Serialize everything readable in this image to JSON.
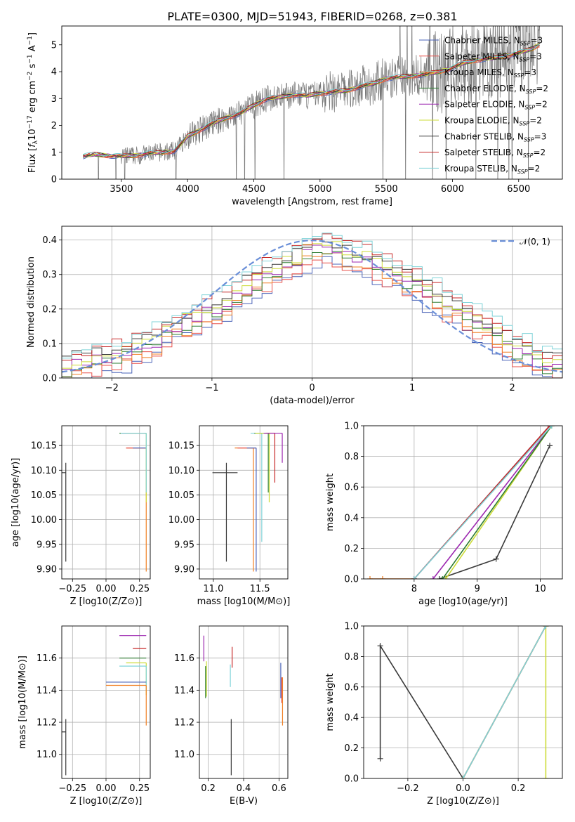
{
  "figure_title": "PLATE=0300, MJD=51943, FIBERID=0268, z=0.381",
  "colors": {
    "Chabrier MILES": "#4a63b8",
    "Salpeter MILES": "#e8504a",
    "Kroupa MILES": "#f07f23",
    "Chabrier ELODIE": "#2e7d32",
    "Salpeter ELODIE": "#9c27b0",
    "Kroupa ELODIE": "#cddc39",
    "Chabrier STELIB": "#3a3a3a",
    "Salpeter STELIB": "#c62828",
    "Kroupa STELIB": "#7fd3d8",
    "data": "#777777",
    "normal": "#6a8fd8"
  },
  "legend_entries": [
    {
      "name": "Chabrier MILES",
      "nssp": "3"
    },
    {
      "name": "Salpeter MILES",
      "nssp": "3"
    },
    {
      "name": "Kroupa MILES",
      "nssp": "3"
    },
    {
      "name": "Chabrier ELODIE",
      "nssp": "2"
    },
    {
      "name": "Salpeter ELODIE",
      "nssp": "2"
    },
    {
      "name": "Kroupa ELODIE",
      "nssp": "2"
    },
    {
      "name": "Chabrier STELIB",
      "nssp": "3"
    },
    {
      "name": "Salpeter STELIB",
      "nssp": "2"
    },
    {
      "name": "Kroupa STELIB",
      "nssp": "2"
    }
  ],
  "chart_data": [
    {
      "id": "spectrum",
      "type": "line",
      "title": "PLATE=0300, MJD=51943, FIBERID=0268, z=0.381",
      "xlabel": "wavelength [Angstrom, rest frame]",
      "ylabel": "Flux [f_λ10^-17 erg cm^-2 s^-1 A^-1]",
      "xlim": [
        3050,
        6830
      ],
      "ylim": [
        0,
        5.7
      ],
      "xticks": [
        3500,
        4000,
        4500,
        5000,
        5500,
        6000,
        6500
      ],
      "yticks": [
        0,
        1,
        2,
        3,
        4,
        5
      ],
      "grid": false,
      "legend": "top-right",
      "continuum_x": [
        3210,
        3300,
        3400,
        3500,
        3600,
        3700,
        3800,
        3900,
        3950,
        4000,
        4100,
        4200,
        4300,
        4400,
        4500,
        4600,
        4700,
        4800,
        4900,
        5000,
        5100,
        5200,
        5300,
        5400,
        5500,
        5600,
        5700,
        5800,
        5900,
        6000,
        6100,
        6200,
        6300,
        6400,
        6500,
        6600,
        6650
      ],
      "continuum_y": [
        0.85,
        0.92,
        0.88,
        0.85,
        0.88,
        0.95,
        1.0,
        1.05,
        1.3,
        1.6,
        1.85,
        2.1,
        2.3,
        2.45,
        2.75,
        3.0,
        3.05,
        3.15,
        3.1,
        3.2,
        3.25,
        3.3,
        3.45,
        3.55,
        3.75,
        3.8,
        3.85,
        3.9,
        4.0,
        4.15,
        4.35,
        4.45,
        4.5,
        4.6,
        4.7,
        4.85,
        5.0
      ]
    },
    {
      "id": "residuals",
      "type": "line",
      "xlabel": "(data-model)/error",
      "ylabel": "Normed distribution",
      "xlim": [
        -2.5,
        2.5
      ],
      "ylim": [
        0,
        0.44
      ],
      "xticks": [
        -2,
        -1,
        0,
        1,
        2
      ],
      "yticks": [
        0.0,
        0.1,
        0.2,
        0.3,
        0.4
      ],
      "grid": true,
      "legend": "top-right",
      "legend_label": "𝒩(0, 1)",
      "hist_bins_x": [
        -2.5,
        -2.4,
        -2.3,
        -2.2,
        -2.1,
        -2.0,
        -1.9,
        -1.8,
        -1.7,
        -1.6,
        -1.5,
        -1.4,
        -1.3,
        -1.2,
        -1.1,
        -1.0,
        -0.9,
        -0.8,
        -0.7,
        -0.6,
        -0.5,
        -0.4,
        -0.3,
        -0.2,
        -0.1,
        0.0,
        0.1,
        0.2,
        0.3,
        0.4,
        0.5,
        0.6,
        0.7,
        0.8,
        0.9,
        1.0,
        1.1,
        1.2,
        1.3,
        1.4,
        1.5,
        1.6,
        1.7,
        1.8,
        1.9,
        2.0,
        2.1,
        2.2,
        2.3,
        2.4
      ],
      "hist_center": [
        0.03,
        0.04,
        0.045,
        0.05,
        0.06,
        0.065,
        0.075,
        0.085,
        0.095,
        0.105,
        0.13,
        0.15,
        0.16,
        0.175,
        0.19,
        0.2,
        0.22,
        0.24,
        0.26,
        0.28,
        0.3,
        0.31,
        0.33,
        0.34,
        0.36,
        0.38,
        0.38,
        0.37,
        0.36,
        0.35,
        0.34,
        0.33,
        0.31,
        0.3,
        0.28,
        0.27,
        0.25,
        0.23,
        0.21,
        0.2,
        0.18,
        0.16,
        0.14,
        0.12,
        0.1,
        0.08,
        0.07,
        0.05,
        0.04,
        0.035
      ]
    },
    {
      "id": "age_vs_Z",
      "type": "scatter",
      "xlabel": "Z [log10(Z/Z⊙)]",
      "ylabel": "age [log10(age/yr)]",
      "xlim": [
        -0.33,
        0.33
      ],
      "ylim": [
        9.88,
        10.19
      ],
      "xticks": [
        -0.25,
        0.0,
        0.25
      ],
      "yticks": [
        9.9,
        9.95,
        10.0,
        10.05,
        10.1,
        10.15
      ],
      "grid": true,
      "markers": [
        {
          "model": "Chabrier STELIB",
          "x": -0.3,
          "y": 10.095,
          "xerr": [
            0.4,
            0
          ],
          "yerr": [
            0.18,
            0.02
          ]
        },
        {
          "model": "Kroupa MILES",
          "x": 0.3,
          "y": 10.145,
          "xerr": [
            0.15,
            0
          ],
          "yerr": [
            0.25,
            0.0
          ]
        },
        {
          "model": "Salpeter MILES",
          "x": 0.3,
          "y": 10.145,
          "xerr": [
            0.15,
            0
          ],
          "yerr": [
            0.0,
            0.0
          ]
        },
        {
          "model": "Chabrier MILES",
          "x": 0.3,
          "y": 10.145,
          "xerr": [
            0.1,
            0
          ],
          "yerr": [
            0.0,
            0.0
          ]
        },
        {
          "model": "Chabrier ELODIE",
          "x": 0.3,
          "y": 10.175,
          "xerr": [
            0.2,
            0
          ],
          "yerr": [
            0.0,
            0.0
          ]
        },
        {
          "model": "Salpeter ELODIE",
          "x": 0.3,
          "y": 10.175,
          "xerr": [
            0.18,
            0
          ],
          "yerr": [
            0.0,
            0.0
          ]
        },
        {
          "model": "Kroupa ELODIE",
          "x": 0.3,
          "y": 10.175,
          "xerr": [
            0.15,
            0
          ],
          "yerr": [
            0.14,
            0.0
          ]
        },
        {
          "model": "Kroupa STELIB",
          "x": 0.3,
          "y": 10.175,
          "xerr": [
            0.19,
            0
          ],
          "yerr": [
            0.12,
            0.0
          ]
        }
      ]
    },
    {
      "id": "age_vs_mass",
      "type": "scatter",
      "xlabel": "mass [log10(M/M⊙)]",
      "xlim": [
        10.85,
        11.8
      ],
      "ylim": [
        9.88,
        10.19
      ],
      "xticks": [
        11.0,
        11.5
      ],
      "yticks": [
        9.9,
        9.95,
        10.0,
        10.05,
        10.1,
        10.15
      ],
      "grid": true,
      "markers": [
        {
          "model": "Chabrier STELIB",
          "x": 11.14,
          "y": 10.095,
          "xerr": [
            0.15,
            0.12
          ],
          "yerr": [
            0.18,
            0.02
          ]
        },
        {
          "model": "Kroupa MILES",
          "x": 11.43,
          "y": 10.145,
          "xerr": [
            0.2,
            0
          ],
          "yerr": [
            0.25,
            0.0
          ]
        },
        {
          "model": "Salpeter MILES",
          "x": 11.46,
          "y": 10.145,
          "xerr": [
            0.2,
            0
          ],
          "yerr": [
            0.0,
            0.0
          ]
        },
        {
          "model": "Chabrier MILES",
          "x": 11.46,
          "y": 10.145,
          "xerr": [
            0.1,
            0.0
          ],
          "yerr": [
            0.25,
            0.0
          ]
        },
        {
          "model": "Kroupa STELIB",
          "x": 11.52,
          "y": 10.175,
          "xerr": [
            0.12,
            0
          ],
          "yerr": [
            0.22,
            0.0
          ]
        },
        {
          "model": "Chabrier ELODIE",
          "x": 11.59,
          "y": 10.175,
          "xerr": [
            0.15,
            0
          ],
          "yerr": [
            0.12,
            0.0
          ]
        },
        {
          "model": "Kroupa ELODIE",
          "x": 11.6,
          "y": 10.175,
          "xerr": [
            0.15,
            0
          ],
          "yerr": [
            0.14,
            0.0
          ]
        },
        {
          "model": "Salpeter STELIB",
          "x": 11.66,
          "y": 10.175,
          "xerr": [
            0.1,
            0
          ],
          "yerr": [
            0.1,
            0.0
          ]
        },
        {
          "model": "Salpeter ELODIE",
          "x": 11.74,
          "y": 10.175,
          "xerr": [
            0.2,
            0
          ],
          "yerr": [
            0.06,
            0.0
          ]
        }
      ]
    },
    {
      "id": "weight_vs_age",
      "type": "line",
      "xlabel": "age [log10(age/yr)]",
      "ylabel": "mass weight",
      "xlim": [
        7.2,
        10.35
      ],
      "ylim": [
        0,
        1.0
      ],
      "xticks": [
        8,
        9,
        10
      ],
      "yticks": [
        0.0,
        0.2,
        0.4,
        0.6,
        0.8,
        1.0
      ],
      "grid": true,
      "series": [
        {
          "model": "Chabrier STELIB",
          "x": [
            8.4,
            9.3,
            10.15
          ],
          "y": [
            0.0,
            0.13,
            0.87
          ]
        },
        {
          "model": "Salpeter ELODIE",
          "x": [
            8.3,
            10.18
          ],
          "y": [
            0.0,
            1.0
          ]
        },
        {
          "model": "Kroupa ELODIE",
          "x": [
            8.5,
            10.18
          ],
          "y": [
            0.0,
            1.0
          ]
        },
        {
          "model": "Chabrier ELODIE",
          "x": [
            8.45,
            10.18
          ],
          "y": [
            0.0,
            1.0
          ]
        },
        {
          "model": "Kroupa MILES",
          "x": [
            7.3,
            7.5,
            8.0,
            10.15
          ],
          "y": [
            0.0,
            0.0,
            0.0,
            1.0
          ]
        },
        {
          "model": "Salpeter MILES",
          "x": [
            8.0,
            10.15
          ],
          "y": [
            0.0,
            1.0
          ]
        },
        {
          "model": "Chabrier MILES",
          "x": [
            8.0,
            10.15
          ],
          "y": [
            0.0,
            1.0
          ]
        },
        {
          "model": "Salpeter STELIB",
          "x": [
            8.0,
            10.15
          ],
          "y": [
            0.0,
            1.0
          ]
        },
        {
          "model": "Kroupa STELIB",
          "x": [
            8.0,
            10.18
          ],
          "y": [
            0.0,
            1.0
          ]
        }
      ]
    },
    {
      "id": "mass_vs_Z",
      "type": "scatter",
      "xlabel": "Z [log10(Z/Z⊙)]",
      "ylabel": "mass [log10(M/M⊙)]",
      "xlim": [
        -0.33,
        0.33
      ],
      "ylim": [
        10.85,
        11.8
      ],
      "xticks": [
        -0.25,
        0.0,
        0.25
      ],
      "yticks": [
        11.0,
        11.2,
        11.4,
        11.6
      ],
      "grid": true,
      "markers": [
        {
          "model": "Chabrier STELIB",
          "x": -0.3,
          "y": 11.14,
          "xerr": [
            0.4,
            0
          ],
          "yerr": [
            0.27,
            0.08
          ]
        },
        {
          "model": "Salpeter ELODIE",
          "x": 0.3,
          "y": 11.74,
          "xerr": [
            0.2,
            0
          ],
          "yerr": [
            0,
            0
          ]
        },
        {
          "model": "Salpeter STELIB",
          "x": 0.3,
          "y": 11.66,
          "xerr": [
            0.1,
            0
          ],
          "yerr": [
            0,
            0
          ]
        },
        {
          "model": "Chabrier ELODIE",
          "x": 0.3,
          "y": 11.6,
          "xerr": [
            0.2,
            0
          ],
          "yerr": [
            0,
            0
          ]
        },
        {
          "model": "Kroupa ELODIE",
          "x": 0.3,
          "y": 11.57,
          "xerr": [
            0.15,
            0
          ],
          "yerr": [
            0.2,
            0
          ]
        },
        {
          "model": "Kroupa STELIB",
          "x": 0.3,
          "y": 11.55,
          "xerr": [
            0.2,
            0
          ],
          "yerr": [
            0.15,
            0
          ]
        },
        {
          "model": "Chabrier MILES",
          "x": 0.3,
          "y": 11.45,
          "xerr": [
            0.3,
            0
          ],
          "yerr": [
            0,
            0
          ]
        },
        {
          "model": "Kroupa MILES",
          "x": 0.3,
          "y": 11.43,
          "xerr": [
            0.3,
            0
          ],
          "yerr": [
            0.25,
            0
          ]
        }
      ]
    },
    {
      "id": "mass_vs_ebv",
      "type": "scatter",
      "xlabel": "E(B-V)",
      "xlim": [
        0.15,
        0.65
      ],
      "ylim": [
        10.85,
        11.8
      ],
      "xticks": [
        0.2,
        0.4,
        0.6
      ],
      "yticks": [
        11.0,
        11.2,
        11.4,
        11.6
      ],
      "grid": true,
      "markers": [
        {
          "model": "Salpeter ELODIE",
          "x": 0.175,
          "y": 11.62,
          "yerr": [
            0.04,
            0.12
          ]
        },
        {
          "model": "Chabrier ELODIE",
          "x": 0.185,
          "y": 11.45,
          "yerr": [
            0.1,
            0.1
          ]
        },
        {
          "model": "Kroupa ELODIE",
          "x": 0.19,
          "y": 11.46,
          "yerr": [
            0.1,
            0.12
          ]
        },
        {
          "model": "Salpeter STELIB",
          "x": 0.335,
          "y": 11.6,
          "yerr": [
            0.06,
            0.07
          ]
        },
        {
          "model": "Kroupa STELIB",
          "x": 0.325,
          "y": 11.48,
          "yerr": [
            0.06,
            0.08
          ]
        },
        {
          "model": "Chabrier STELIB",
          "x": 0.33,
          "y": 11.14,
          "yerr": [
            0.27,
            0.08
          ]
        },
        {
          "model": "Kroupa MILES",
          "x": 0.62,
          "y": 11.33,
          "yerr": [
            0.15,
            0.15
          ]
        },
        {
          "model": "Chabrier MILES",
          "x": 0.61,
          "y": 11.45,
          "yerr": [
            0.1,
            0.12
          ]
        },
        {
          "model": "Salpeter MILES",
          "x": 0.615,
          "y": 11.4,
          "yerr": [
            0.08,
            0.08
          ]
        }
      ]
    },
    {
      "id": "weight_vs_Z",
      "type": "line",
      "xlabel": "Z [log10(Z/Z⊙)]",
      "ylabel": "mass weight",
      "xlim": [
        -0.36,
        0.36
      ],
      "ylim": [
        0,
        1.0
      ],
      "xticks": [
        -0.2,
        0.0,
        0.2
      ],
      "yticks": [
        0.0,
        0.2,
        0.4,
        0.6,
        0.8,
        1.0
      ],
      "grid": true,
      "series": [
        {
          "model": "Chabrier STELIB",
          "x": [
            -0.3,
            -0.3,
            0.0
          ],
          "y": [
            0.13,
            0.87,
            0.0
          ]
        },
        {
          "model": "Kroupa ELODIE",
          "x": [
            0.0,
            0.3,
            0.3
          ],
          "y": [
            0.0,
            1.0,
            0.0
          ]
        },
        {
          "model": "Chabrier ELODIE",
          "x": [
            0.0,
            0.3
          ],
          "y": [
            0.0,
            1.0
          ]
        },
        {
          "model": "Kroupa MILES",
          "x": [
            0.0,
            0.3
          ],
          "y": [
            0.0,
            1.0
          ]
        },
        {
          "model": "Salpeter MILES",
          "x": [
            0.0,
            0.3
          ],
          "y": [
            0.0,
            1.0
          ]
        },
        {
          "model": "Kroupa STELIB",
          "x": [
            0.0,
            0.3
          ],
          "y": [
            0.0,
            1.0
          ]
        }
      ]
    }
  ],
  "text": {
    "spectrum_title": "PLATE=0300, MJD=51943, FIBERID=0268, z=0.381",
    "spectrum_xlabel": "wavelength [Angstrom, rest frame]",
    "spectrum_ylabel": "Flux [f_λ10^-17 erg cm^-2 s^-1 A^-1]",
    "resid_xlabel": "(data-model)/error",
    "resid_ylabel": "Normed distribution",
    "resid_legend": "𝒩(0, 1)",
    "age_ylabel": "age  [log10(age/yr)]",
    "z_xlabel": "Z [log10(Z/Z⊙)]",
    "mass_xlabel": "mass [log10(M/M⊙)]",
    "wage_xlabel": "age  [log10(age/yr)]",
    "mw_ylabel": "mass weight",
    "mass_ylabel": "mass [log10(M/M⊙)]",
    "ebv_xlabel": "E(B-V)"
  }
}
